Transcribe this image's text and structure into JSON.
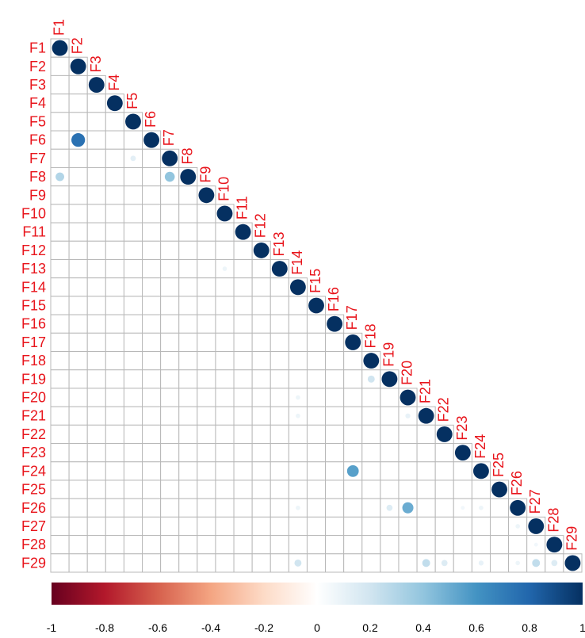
{
  "chart_data": {
    "type": "heatmap",
    "variables": [
      "F1",
      "F2",
      "F3",
      "F4",
      "F5",
      "F6",
      "F7",
      "F8",
      "F9",
      "F10",
      "F11",
      "F12",
      "F13",
      "F14",
      "F15",
      "F16",
      "F17",
      "F18",
      "F19",
      "F20",
      "F21",
      "F22",
      "F23",
      "F24",
      "F25",
      "F26",
      "F27",
      "F28",
      "F29"
    ],
    "method": "circle",
    "layout": "lower-triangle",
    "diagonal_value": 1,
    "correlations": [
      {
        "row": "F6",
        "col": "F2",
        "value": 0.75
      },
      {
        "row": "F8",
        "col": "F1",
        "value": 0.3
      },
      {
        "row": "F8",
        "col": "F7",
        "value": 0.4
      },
      {
        "row": "F19",
        "col": "F18",
        "value": 0.2
      },
      {
        "row": "F24",
        "col": "F17",
        "value": 0.55
      },
      {
        "row": "F26",
        "col": "F20",
        "value": 0.5
      },
      {
        "row": "F26",
        "col": "F19",
        "value": 0.15
      },
      {
        "row": "F29",
        "col": "F14",
        "value": 0.2
      },
      {
        "row": "F29",
        "col": "F21",
        "value": 0.25
      },
      {
        "row": "F29",
        "col": "F22",
        "value": 0.15
      },
      {
        "row": "F29",
        "col": "F27",
        "value": 0.25
      },
      {
        "row": "F29",
        "col": "F28",
        "value": 0.15
      },
      {
        "row": "F7",
        "col": "F5",
        "value": 0.12
      },
      {
        "row": "F13",
        "col": "F10",
        "value": 0.08
      },
      {
        "row": "F20",
        "col": "F14",
        "value": 0.08
      },
      {
        "row": "F21",
        "col": "F14",
        "value": 0.08
      },
      {
        "row": "F21",
        "col": "F20",
        "value": 0.1
      },
      {
        "row": "F26",
        "col": "F14",
        "value": 0.08
      },
      {
        "row": "F26",
        "col": "F23",
        "value": 0.06
      },
      {
        "row": "F26",
        "col": "F24",
        "value": 0.08
      },
      {
        "row": "F27",
        "col": "F26",
        "value": 0.08
      },
      {
        "row": "F28",
        "col": "F27",
        "value": 0.06
      },
      {
        "row": "F29",
        "col": "F24",
        "value": 0.1
      },
      {
        "row": "F29",
        "col": "F26",
        "value": 0.08
      }
    ],
    "colorbar": {
      "range": [
        -1,
        1
      ],
      "ticks": [
        "-1",
        "-0.8",
        "-0.6",
        "-0.4",
        "-0.2",
        "0",
        "0.2",
        "0.4",
        "0.6",
        "0.8",
        "1"
      ],
      "colors": [
        "#67001f",
        "#b2182b",
        "#d6604d",
        "#f4a582",
        "#fddbc7",
        "#ffffff",
        "#d1e5f0",
        "#92c5de",
        "#4393c3",
        "#2166ac",
        "#053061"
      ],
      "placement": "bottom"
    },
    "label_color": "#e8141b",
    "grid_color": "#b8b8b8"
  }
}
